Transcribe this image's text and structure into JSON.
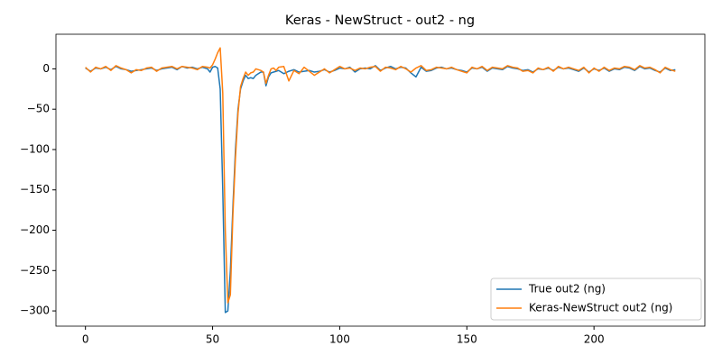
{
  "chart_data": {
    "type": "line",
    "title": "Keras - NewStruct - out2 - ng",
    "x": [
      0,
      2,
      4,
      6,
      8,
      10,
      12,
      14,
      16,
      18,
      20,
      22,
      24,
      26,
      28,
      30,
      32,
      34,
      36,
      38,
      40,
      42,
      44,
      46,
      48,
      49,
      50,
      51,
      52,
      53,
      54,
      55,
      56,
      57,
      58,
      59,
      60,
      61,
      62,
      63,
      64,
      65,
      66,
      67,
      68,
      69,
      70,
      71,
      72,
      73,
      74,
      75,
      76,
      78,
      80,
      82,
      84,
      86,
      88,
      90,
      92,
      94,
      96,
      98,
      100,
      102,
      104,
      106,
      108,
      110,
      112,
      114,
      116,
      118,
      120,
      122,
      124,
      126,
      128,
      130,
      132,
      134,
      136,
      138,
      140,
      142,
      144,
      146,
      148,
      150,
      152,
      154,
      156,
      158,
      160,
      162,
      164,
      166,
      168,
      170,
      172,
      174,
      176,
      178,
      180,
      182,
      184,
      186,
      188,
      190,
      192,
      194,
      196,
      198,
      200,
      202,
      204,
      206,
      208,
      210,
      212,
      214,
      216,
      218,
      220,
      222,
      224,
      226,
      228,
      230,
      232
    ],
    "series": [
      {
        "name": "True out2 (ng)",
        "color": "#1f77b4",
        "values": [
          1,
          -3,
          1,
          0,
          2,
          -1,
          3,
          0,
          -1,
          -3,
          -2,
          -1,
          0,
          1,
          -2,
          0,
          1,
          2,
          -1,
          3,
          1,
          2,
          0,
          2,
          0,
          -4,
          2,
          3,
          1,
          -25,
          -150,
          -302,
          -300,
          -250,
          -170,
          -100,
          -50,
          -25,
          -15,
          -8,
          -12,
          -11,
          -12,
          -8,
          -6,
          -4,
          -4,
          -21,
          -10,
          -5,
          -4,
          -3,
          -2,
          -6,
          -3,
          -1,
          -4,
          -3,
          -2,
          -4,
          -3,
          -1,
          -4,
          -2,
          1,
          0,
          2,
          -4,
          0,
          1,
          0,
          4,
          -2,
          1,
          3,
          0,
          2,
          1,
          -5,
          -10,
          2,
          -3,
          -2,
          1,
          2,
          0,
          1,
          -1,
          -2,
          -4,
          1,
          0,
          2,
          -3,
          1,
          0,
          -1,
          3,
          1,
          0,
          -2,
          -1,
          -4,
          0,
          -1,
          1,
          -2,
          2,
          0,
          1,
          -1,
          -3,
          1,
          -4,
          0,
          -2,
          1,
          -3,
          0,
          -1,
          2,
          1,
          -2,
          3,
          0,
          1,
          -2,
          -4,
          1,
          -2,
          -1
        ]
      },
      {
        "name": "Keras-NewStruct out2 (ng)",
        "color": "#ff7f0e",
        "values": [
          2,
          -4,
          2,
          0,
          3,
          -2,
          4,
          1,
          -1,
          -5,
          -1,
          -2,
          1,
          2,
          -3,
          1,
          2,
          3,
          0,
          3,
          2,
          1,
          -1,
          3,
          2,
          1,
          5,
          12,
          20,
          26,
          -30,
          -200,
          -290,
          -280,
          -180,
          -110,
          -55,
          -22,
          -12,
          -4,
          -8,
          -5,
          -4,
          0,
          -1,
          -2,
          -4,
          -18,
          -8,
          0,
          1,
          -2,
          2,
          3,
          -15,
          -2,
          -6,
          2,
          -3,
          -8,
          -4,
          0,
          -5,
          -1,
          3,
          0,
          1,
          -2,
          1,
          0,
          2,
          3,
          -3,
          2,
          1,
          -1,
          3,
          0,
          -4,
          1,
          4,
          -2,
          -1,
          2,
          1,
          0,
          2,
          -1,
          -3,
          -5,
          2,
          0,
          3,
          -2,
          2,
          1,
          0,
          4,
          2,
          1,
          -3,
          -2,
          -5,
          1,
          -1,
          2,
          -3,
          3,
          0,
          2,
          0,
          -2,
          2,
          -5,
          1,
          -3,
          2,
          -2,
          1,
          0,
          3,
          2,
          -1,
          4,
          1,
          2,
          -1,
          -5,
          2,
          -1,
          -3
        ]
      }
    ],
    "xlim": [
      -11.6,
      243.6
    ],
    "xticks": [
      0,
      50,
      100,
      150,
      200
    ],
    "ylim": [
      -318.9,
      42.9
    ],
    "yticks": [
      {
        "value": -300,
        "label": "−300"
      },
      {
        "value": -250,
        "label": "−250"
      },
      {
        "value": -200,
        "label": "−200"
      },
      {
        "value": -150,
        "label": "−150"
      },
      {
        "value": -100,
        "label": "−100"
      },
      {
        "value": -50,
        "label": "−50"
      },
      0
    ],
    "legend": "lower right"
  }
}
